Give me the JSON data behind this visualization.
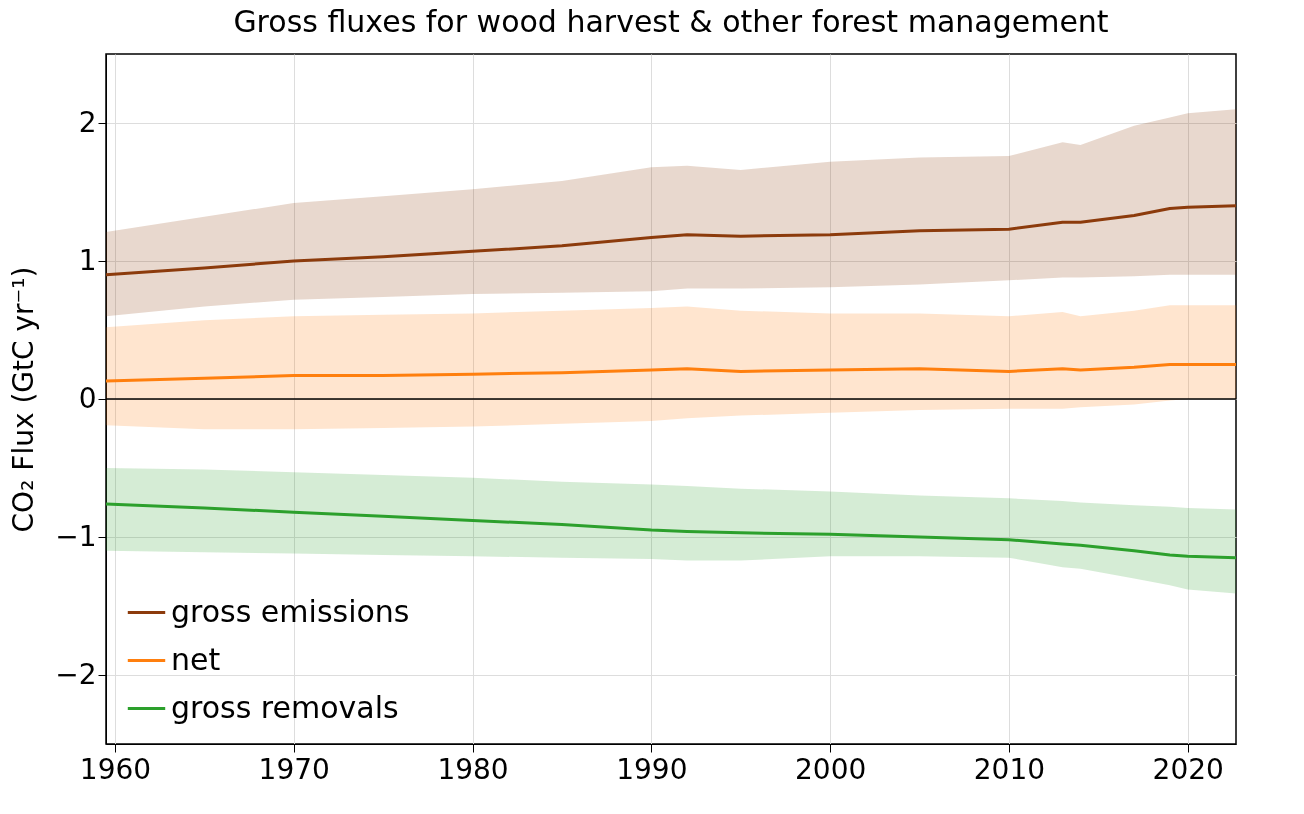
{
  "chart_data": {
    "type": "line",
    "title": "Gross fluxes for wood harvest & other forest management",
    "ylabel": "CO₂ Flux (GtC yr⁻¹)",
    "xlim": [
      1959.5,
      2022.7
    ],
    "xticks": [
      1960,
      1970,
      1980,
      1990,
      2000,
      2010,
      2020
    ],
    "ylim": [
      -2.5,
      2.5
    ],
    "yticks": [
      {
        "value": -2,
        "label": "−2"
      },
      {
        "value": -1,
        "label": "−1"
      },
      0,
      1,
      2
    ],
    "grid": true,
    "legend": "bottom left",
    "line_style": "solid",
    "ref_lines": [
      {
        "axis": "y",
        "value": 0,
        "color": "#000000"
      }
    ],
    "series": [
      {
        "name": "gross emissions",
        "color": "#8c3b0c",
        "x": [
          1959.5,
          1965,
          1970,
          1975,
          1980,
          1985,
          1990,
          1992,
          1995,
          2000,
          2005,
          2010,
          2013,
          2014,
          2017,
          2019,
          2020,
          2022.7
        ],
        "values": [
          0.9,
          0.95,
          1.0,
          1.03,
          1.07,
          1.11,
          1.17,
          1.19,
          1.18,
          1.19,
          1.22,
          1.23,
          1.28,
          1.28,
          1.33,
          1.38,
          1.39,
          1.4
        ],
        "upper": [
          1.21,
          1.32,
          1.42,
          1.47,
          1.52,
          1.58,
          1.68,
          1.69,
          1.66,
          1.72,
          1.75,
          1.76,
          1.86,
          1.84,
          1.98,
          2.04,
          2.07,
          2.1
        ],
        "lower": [
          0.6,
          0.67,
          0.72,
          0.74,
          0.76,
          0.77,
          0.78,
          0.8,
          0.8,
          0.81,
          0.83,
          0.86,
          0.88,
          0.88,
          0.89,
          0.9,
          0.9,
          0.9
        ]
      },
      {
        "name": "net",
        "color": "#ff7f0e",
        "x": [
          1959.5,
          1965,
          1970,
          1975,
          1980,
          1985,
          1990,
          1992,
          1995,
          2000,
          2005,
          2010,
          2013,
          2014,
          2017,
          2019,
          2020,
          2022.7
        ],
        "values": [
          0.13,
          0.15,
          0.17,
          0.17,
          0.18,
          0.19,
          0.21,
          0.22,
          0.2,
          0.21,
          0.22,
          0.2,
          0.22,
          0.21,
          0.23,
          0.25,
          0.25,
          0.25
        ],
        "upper": [
          0.52,
          0.57,
          0.6,
          0.61,
          0.62,
          0.64,
          0.66,
          0.67,
          0.64,
          0.62,
          0.62,
          0.6,
          0.63,
          0.6,
          0.64,
          0.68,
          0.68,
          0.68
        ],
        "lower": [
          -0.19,
          -0.22,
          -0.22,
          -0.21,
          -0.2,
          -0.18,
          -0.16,
          -0.14,
          -0.12,
          -0.1,
          -0.08,
          -0.07,
          -0.07,
          -0.06,
          -0.04,
          -0.01,
          0.0,
          0.0
        ]
      },
      {
        "name": "gross removals",
        "color": "#2ca02c",
        "x": [
          1959.5,
          1965,
          1970,
          1975,
          1980,
          1985,
          1990,
          1992,
          1995,
          2000,
          2005,
          2010,
          2013,
          2014,
          2017,
          2019,
          2020,
          2022.7
        ],
        "values": [
          -0.76,
          -0.79,
          -0.82,
          -0.85,
          -0.88,
          -0.91,
          -0.95,
          -0.96,
          -0.97,
          -0.98,
          -1.0,
          -1.02,
          -1.05,
          -1.06,
          -1.1,
          -1.13,
          -1.14,
          -1.15
        ],
        "upper": [
          -0.5,
          -0.51,
          -0.53,
          -0.55,
          -0.57,
          -0.6,
          -0.62,
          -0.63,
          -0.65,
          -0.67,
          -0.7,
          -0.72,
          -0.74,
          -0.75,
          -0.77,
          -0.78,
          -0.79,
          -0.8
        ],
        "lower": [
          -1.1,
          -1.11,
          -1.12,
          -1.13,
          -1.14,
          -1.15,
          -1.16,
          -1.17,
          -1.17,
          -1.14,
          -1.14,
          -1.15,
          -1.22,
          -1.23,
          -1.3,
          -1.35,
          -1.38,
          -1.41
        ]
      }
    ]
  }
}
